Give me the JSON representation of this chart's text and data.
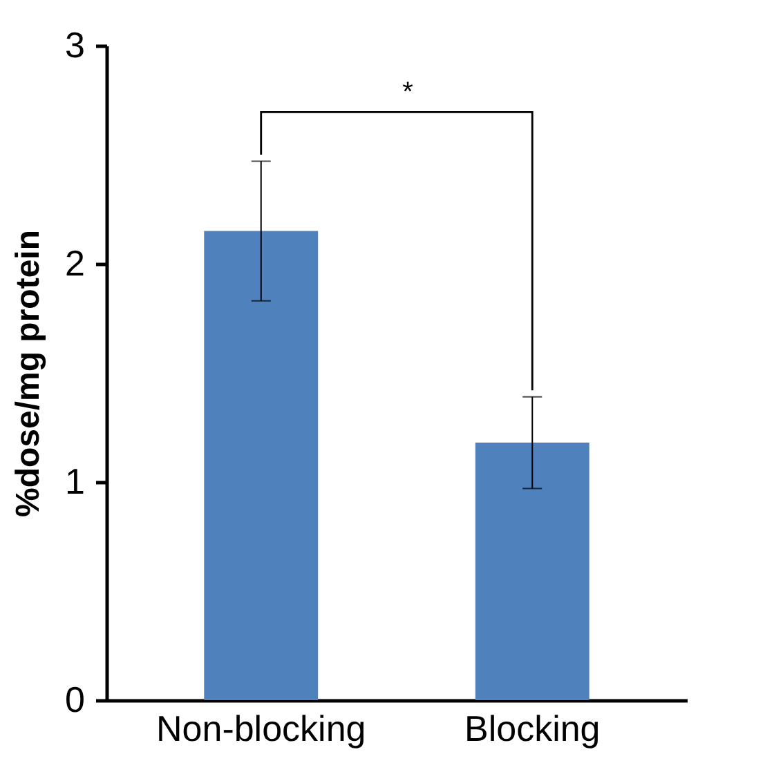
{
  "chart_data": {
    "type": "bar",
    "ylabel": "%dose/mg protein",
    "categories": [
      "Non-blocking",
      "Blocking"
    ],
    "values": [
      2.15,
      1.18
    ],
    "color": "#4f81bd",
    "errors": [
      0.32,
      0.21
    ],
    "ylim": [
      0,
      3
    ],
    "yticks": [
      0,
      1,
      2,
      3
    ],
    "grid": false,
    "annotations": [
      "*"
    ]
  }
}
